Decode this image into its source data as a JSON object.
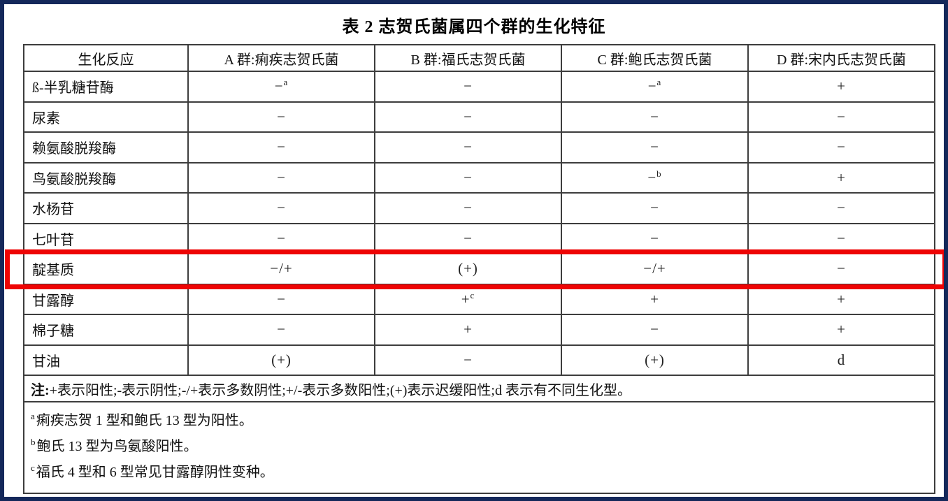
{
  "frame": {
    "border_color": "#14285a"
  },
  "title": "表 2 志贺氏菌属四个群的生化特征",
  "table": {
    "headers": [
      "生化反应",
      "A 群:痢疾志贺氏菌",
      "B 群:福氏志贺氏菌",
      "C 群:鲍氏志贺氏菌",
      "D 群:宋内氏志贺氏菌"
    ],
    "rows": [
      {
        "label": "ß-半乳糖苷酶",
        "highlighted": false,
        "cells": [
          {
            "v": "−",
            "sup": "a"
          },
          {
            "v": "−"
          },
          {
            "v": "−",
            "sup": "a"
          },
          {
            "v": "+"
          }
        ]
      },
      {
        "label": "尿素",
        "highlighted": false,
        "cells": [
          {
            "v": "−"
          },
          {
            "v": "−"
          },
          {
            "v": "−"
          },
          {
            "v": "−"
          }
        ]
      },
      {
        "label": "赖氨酸脱羧酶",
        "highlighted": false,
        "cells": [
          {
            "v": "−"
          },
          {
            "v": "−"
          },
          {
            "v": "−"
          },
          {
            "v": "−"
          }
        ]
      },
      {
        "label": "鸟氨酸脱羧酶",
        "highlighted": false,
        "cells": [
          {
            "v": "−"
          },
          {
            "v": "−"
          },
          {
            "v": "−",
            "sup": "b"
          },
          {
            "v": "+"
          }
        ]
      },
      {
        "label": "水杨苷",
        "highlighted": false,
        "cells": [
          {
            "v": "−"
          },
          {
            "v": "−"
          },
          {
            "v": "−"
          },
          {
            "v": "−"
          }
        ]
      },
      {
        "label": "七叶苷",
        "highlighted": false,
        "cells": [
          {
            "v": "−"
          },
          {
            "v": "−"
          },
          {
            "v": "−"
          },
          {
            "v": "−"
          }
        ]
      },
      {
        "label": "靛基质",
        "highlighted": true,
        "cells": [
          {
            "v": "−/+"
          },
          {
            "v": "(+)"
          },
          {
            "v": "−/+"
          },
          {
            "v": "−"
          }
        ]
      },
      {
        "label": "甘露醇",
        "highlighted": false,
        "cells": [
          {
            "v": "−"
          },
          {
            "v": "+",
            "sup": "c"
          },
          {
            "v": "+"
          },
          {
            "v": "+"
          }
        ]
      },
      {
        "label": "棉子糖",
        "highlighted": false,
        "cells": [
          {
            "v": "−"
          },
          {
            "v": "+"
          },
          {
            "v": "−"
          },
          {
            "v": "+"
          }
        ]
      },
      {
        "label": "甘油",
        "highlighted": false,
        "cells": [
          {
            "v": "(+)"
          },
          {
            "v": "−"
          },
          {
            "v": "(+)"
          },
          {
            "v": "d"
          }
        ]
      }
    ],
    "note": {
      "prefix": "注:",
      "text": "+表示阳性;-表示阴性;-/+表示多数阴性;+/-表示多数阳性;(+)表示迟缓阳性;d 表示有不同生化型。"
    },
    "footnotes": [
      {
        "marker": "a",
        "text": "痢疾志贺 1 型和鲍氏 13 型为阳性。"
      },
      {
        "marker": "b",
        "text": "鲍氏 13 型为鸟氨酸阳性。"
      },
      {
        "marker": "c",
        "text": "福氏 4 型和 6 型常见甘露醇阴性变种。"
      }
    ]
  },
  "highlight": {
    "color": "#ee0404",
    "row_label": "靛基质"
  }
}
